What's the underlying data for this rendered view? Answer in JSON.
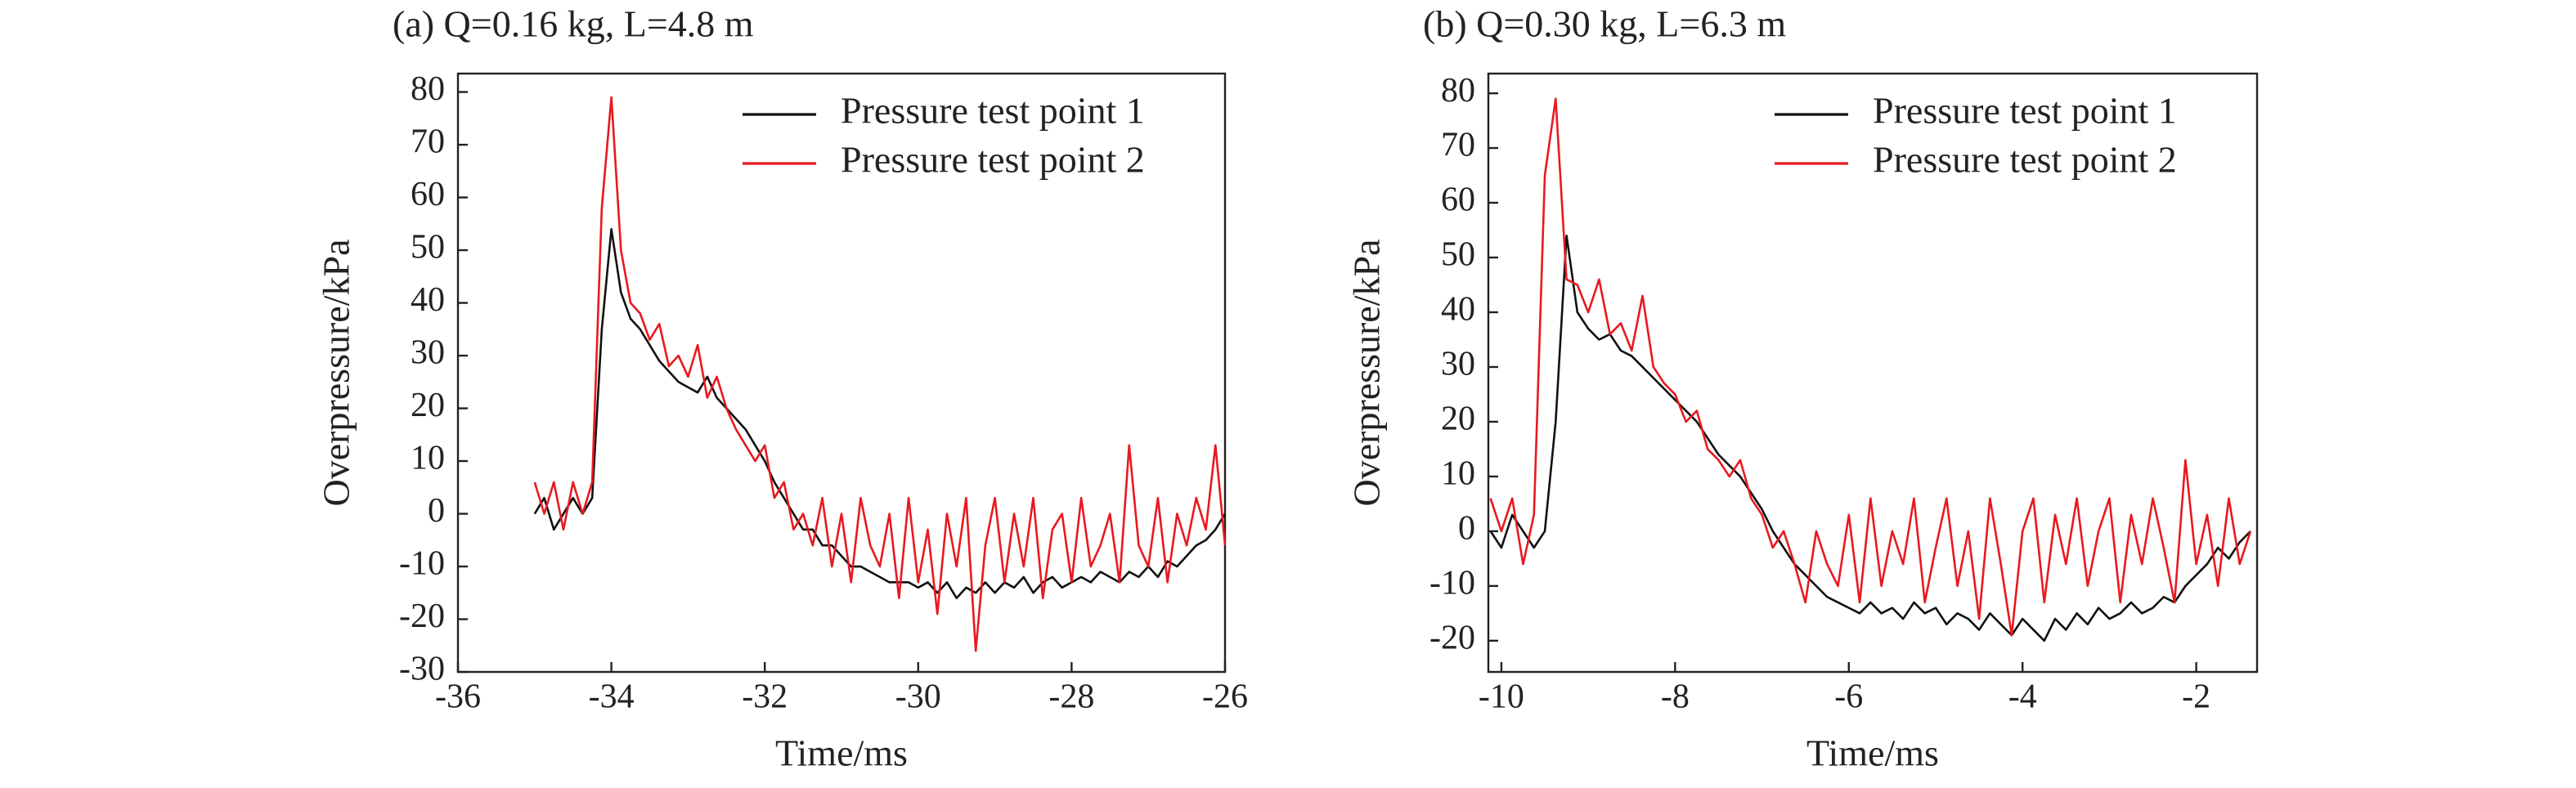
{
  "chart_data": [
    {
      "type": "line",
      "title": "(a) Q=0.16 kg, L=4.8 m",
      "x_label": "Time/ms",
      "y_label": "Overpressure/kPa",
      "xlim": [
        -36,
        -26
      ],
      "ylim": [
        -30,
        83.5
      ],
      "xticks": [
        -36,
        -34,
        -32,
        -30,
        -28,
        -26
      ],
      "yticks": [
        -30,
        -20,
        -10,
        0,
        10,
        20,
        30,
        40,
        50,
        60,
        70,
        80
      ],
      "legend": "upper right",
      "x": [
        -35,
        -34.875,
        -34.75,
        -34.625,
        -34.5,
        -34.375,
        -34.25,
        -34.125,
        -34,
        -33.875,
        -33.75,
        -33.625,
        -33.5,
        -33.375,
        -33.25,
        -33.125,
        -33,
        -32.875,
        -32.75,
        -32.625,
        -32.5,
        -32.375,
        -32.25,
        -32.125,
        -32,
        -31.875,
        -31.75,
        -31.625,
        -31.5,
        -31.375,
        -31.25,
        -31.125,
        -31,
        -30.875,
        -30.75,
        -30.625,
        -30.5,
        -30.375,
        -30.25,
        -30.125,
        -30,
        -29.875,
        -29.75,
        -29.625,
        -29.5,
        -29.375,
        -29.25,
        -29.125,
        -29,
        -28.875,
        -28.75,
        -28.625,
        -28.5,
        -28.375,
        -28.25,
        -28.125,
        -28,
        -27.875,
        -27.75,
        -27.625,
        -27.5,
        -27.375,
        -27.25,
        -27.125,
        -27,
        -26.875,
        -26.75,
        -26.625,
        -26.5,
        -26.375,
        -26.25,
        -26.125,
        -26
      ],
      "series": [
        {
          "name": "Pressure test point 1",
          "color": "#111111",
          "values": [
            0,
            3,
            -3,
            0,
            3,
            0,
            3,
            35,
            54,
            42,
            37,
            35,
            32,
            29,
            27,
            25,
            24,
            23,
            26,
            22,
            20,
            18,
            16,
            13,
            10,
            6,
            3,
            0,
            -3,
            -3,
            -6,
            -6,
            -8,
            -10,
            -10,
            -11,
            -12,
            -13,
            -13,
            -13,
            -14,
            -13,
            -15,
            -13,
            -16,
            -14,
            -15,
            -13,
            -15,
            -13,
            -14,
            -12,
            -15,
            -13,
            -12,
            -14,
            -13,
            -12,
            -13,
            -11,
            -12,
            -13,
            -11,
            -12,
            -10,
            -12,
            -9,
            -10,
            -8,
            -6,
            -5,
            -3,
            0
          ]
        },
        {
          "name": "Pressure test point 2",
          "color": "#e8191f",
          "values": [
            6,
            0,
            6,
            -3,
            6,
            0,
            6,
            58,
            79,
            50,
            40,
            38,
            33,
            36,
            28,
            30,
            26,
            32,
            22,
            26,
            20,
            16,
            13,
            10,
            13,
            3,
            6,
            -3,
            0,
            -6,
            3,
            -10,
            0,
            -13,
            3,
            -6,
            -10,
            0,
            -16,
            3,
            -13,
            -3,
            -19,
            0,
            -10,
            3,
            -26,
            -6,
            3,
            -13,
            0,
            -10,
            3,
            -16,
            -3,
            0,
            -13,
            3,
            -10,
            -6,
            0,
            -13,
            13,
            -6,
            -10,
            3,
            -13,
            0,
            -6,
            3,
            -3,
            13,
            -6
          ]
        }
      ]
    },
    {
      "type": "line",
      "title": "(b) Q=0.30 kg, L=6.3 m",
      "x_label": "Time/ms",
      "y_label": "Overpressure/kPa",
      "xlim": [
        -10.15,
        -1.3
      ],
      "ylim": [
        -25.7,
        83.6
      ],
      "xticks": [
        -10,
        -8,
        -6,
        -4,
        -2
      ],
      "yticks": [
        -20,
        -10,
        0,
        10,
        20,
        30,
        40,
        50,
        60,
        70,
        80
      ],
      "legend": "upper right",
      "x": [
        -10.125,
        -10,
        -9.875,
        -9.75,
        -9.625,
        -9.5,
        -9.375,
        -9.25,
        -9.125,
        -9,
        -8.875,
        -8.75,
        -8.625,
        -8.5,
        -8.375,
        -8.25,
        -8.125,
        -8,
        -7.875,
        -7.75,
        -7.625,
        -7.5,
        -7.375,
        -7.25,
        -7.125,
        -7,
        -6.875,
        -6.75,
        -6.625,
        -6.5,
        -6.375,
        -6.25,
        -6.125,
        -6,
        -5.875,
        -5.75,
        -5.625,
        -5.5,
        -5.375,
        -5.25,
        -5.125,
        -5,
        -4.875,
        -4.75,
        -4.625,
        -4.5,
        -4.375,
        -4.25,
        -4.125,
        -4,
        -3.875,
        -3.75,
        -3.625,
        -3.5,
        -3.375,
        -3.25,
        -3.125,
        -3,
        -2.875,
        -2.75,
        -2.625,
        -2.5,
        -2.375,
        -2.25,
        -2.125,
        -2,
        -1.875,
        -1.75,
        -1.625,
        -1.5,
        -1.375
      ],
      "series": [
        {
          "name": "Pressure test point 1",
          "color": "#111111",
          "values": [
            0,
            -3,
            3,
            0,
            -3,
            0,
            20,
            54,
            40,
            37,
            35,
            36,
            33,
            32,
            30,
            28,
            26,
            24,
            22,
            20,
            17,
            14,
            12,
            10,
            7,
            4,
            0,
            -3,
            -6,
            -8,
            -10,
            -12,
            -13,
            -14,
            -15,
            -13,
            -15,
            -14,
            -16,
            -13,
            -15,
            -14,
            -17,
            -15,
            -16,
            -18,
            -15,
            -17,
            -19,
            -16,
            -18,
            -20,
            -16,
            -18,
            -15,
            -17,
            -14,
            -16,
            -15,
            -13,
            -15,
            -14,
            -12,
            -13,
            -10,
            -8,
            -6,
            -3,
            -5,
            -2,
            0
          ]
        },
        {
          "name": "Pressure test point 2",
          "color": "#e8191f",
          "values": [
            6,
            0,
            6,
            -6,
            3,
            65,
            79,
            46,
            45,
            40,
            46,
            36,
            38,
            33,
            43,
            30,
            27,
            25,
            20,
            22,
            15,
            13,
            10,
            13,
            6,
            3,
            -3,
            0,
            -6,
            -13,
            0,
            -6,
            -10,
            3,
            -13,
            6,
            -10,
            0,
            -6,
            6,
            -13,
            -3,
            6,
            -10,
            0,
            -16,
            6,
            -6,
            -19,
            0,
            6,
            -13,
            3,
            -6,
            6,
            -10,
            0,
            6,
            -13,
            3,
            -6,
            6,
            -3,
            -13,
            13,
            -6,
            3,
            -10,
            6,
            -6,
            0
          ]
        }
      ]
    }
  ]
}
